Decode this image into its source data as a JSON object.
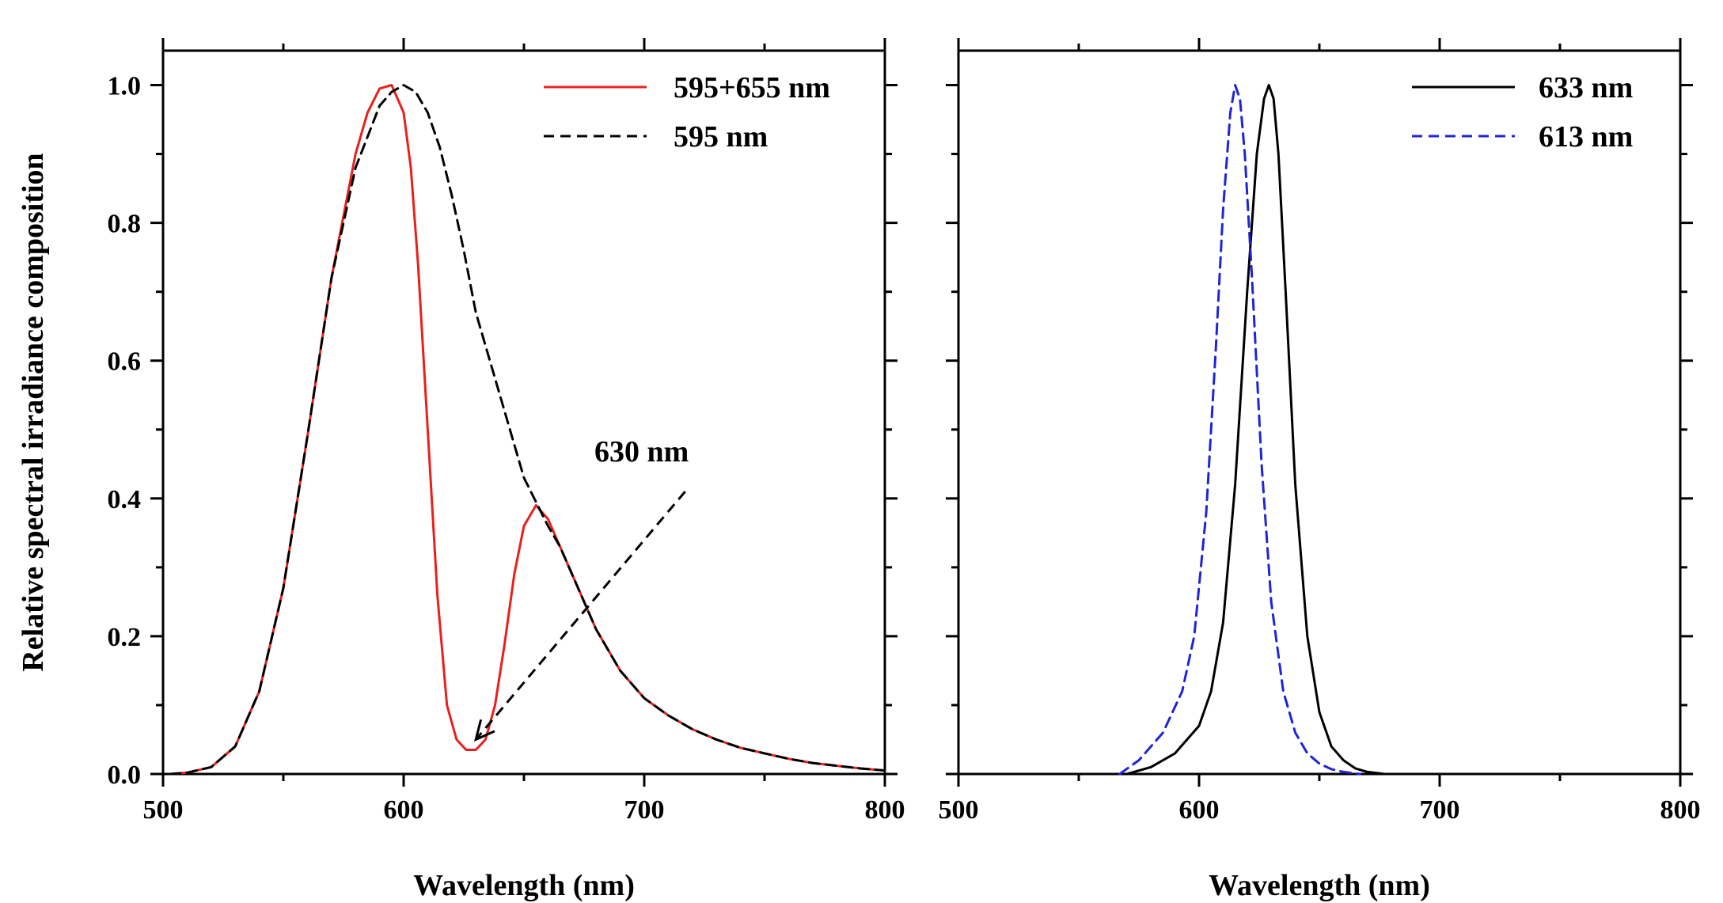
{
  "chart_data": [
    {
      "type": "line",
      "panel": "left",
      "xlabel": "Wavelength (nm)",
      "ylabel": "Relative spectral irradiance composition",
      "xlim": [
        500,
        800
      ],
      "ylim": [
        0,
        1.05
      ],
      "xticks": [
        500,
        600,
        700,
        800
      ],
      "yticks": [
        0.0,
        0.2,
        0.4,
        0.6,
        0.8,
        1.0
      ],
      "xtick_labels": [
        "500",
        "600",
        "700",
        "800"
      ],
      "ytick_labels": [
        "0.0",
        "0.2",
        "0.4",
        "0.6",
        "0.8",
        "1.0"
      ],
      "legend_position": "top-right",
      "series": [
        {
          "name": "595+655 nm",
          "color": "#e8201c",
          "style": "solid",
          "x": [
            503,
            510,
            520,
            530,
            540,
            550,
            560,
            570,
            580,
            585,
            590,
            595,
            600,
            603,
            606,
            610,
            614,
            618,
            622,
            626,
            630,
            634,
            638,
            642,
            646,
            650,
            655,
            660,
            665,
            670,
            675,
            680,
            690,
            700,
            710,
            720,
            730,
            740,
            750,
            760,
            770,
            780,
            790,
            800
          ],
          "y": [
            0.0,
            0.002,
            0.01,
            0.04,
            0.12,
            0.27,
            0.49,
            0.72,
            0.9,
            0.96,
            0.995,
            1.0,
            0.96,
            0.88,
            0.74,
            0.5,
            0.26,
            0.1,
            0.05,
            0.035,
            0.035,
            0.05,
            0.1,
            0.19,
            0.29,
            0.36,
            0.39,
            0.37,
            0.33,
            0.29,
            0.25,
            0.21,
            0.15,
            0.11,
            0.085,
            0.065,
            0.05,
            0.038,
            0.03,
            0.022,
            0.016,
            0.012,
            0.008,
            0.005
          ]
        },
        {
          "name": "595 nm",
          "color": "#000000",
          "style": "dashed",
          "x": [
            503,
            510,
            520,
            530,
            540,
            550,
            560,
            570,
            580,
            590,
            595,
            600,
            605,
            610,
            615,
            620,
            625,
            630,
            640,
            650,
            660,
            665,
            670,
            680,
            690,
            700,
            710,
            720,
            730,
            740,
            750,
            760,
            770,
            780,
            790,
            800
          ],
          "y": [
            0.0,
            0.002,
            0.01,
            0.04,
            0.12,
            0.27,
            0.49,
            0.72,
            0.88,
            0.97,
            0.99,
            1.0,
            0.99,
            0.96,
            0.91,
            0.84,
            0.76,
            0.67,
            0.55,
            0.43,
            0.36,
            0.33,
            0.29,
            0.21,
            0.15,
            0.11,
            0.085,
            0.065,
            0.05,
            0.038,
            0.03,
            0.022,
            0.016,
            0.012,
            0.008,
            0.005
          ]
        }
      ],
      "annotations": [
        {
          "text": "630 nm",
          "from": [
            717,
            0.41
          ],
          "to": [
            630,
            0.05
          ]
        }
      ]
    },
    {
      "type": "line",
      "panel": "right",
      "xlabel": "Wavelength (nm)",
      "ylabel": "",
      "xlim": [
        500,
        800
      ],
      "ylim": [
        0,
        1.05
      ],
      "xticks": [
        500,
        600,
        700,
        800
      ],
      "xtick_labels": [
        "500",
        "600",
        "700",
        "800"
      ],
      "legend_position": "top-right",
      "series": [
        {
          "name": "633 nm",
          "color": "#000000",
          "style": "solid",
          "x": [
            570,
            580,
            590,
            600,
            605,
            610,
            615,
            620,
            624,
            627,
            629,
            631,
            633,
            636,
            640,
            645,
            650,
            655,
            660,
            665,
            670,
            675,
            677
          ],
          "y": [
            0.0,
            0.01,
            0.03,
            0.07,
            0.12,
            0.22,
            0.42,
            0.7,
            0.9,
            0.98,
            1.0,
            0.98,
            0.9,
            0.7,
            0.42,
            0.2,
            0.09,
            0.04,
            0.02,
            0.008,
            0.003,
            0.001,
            0.0
          ]
        },
        {
          "name": "613 nm",
          "color": "#1f24d6",
          "style": "dashed",
          "x": [
            567,
            575,
            585,
            593,
            598,
            603,
            607,
            610,
            613,
            615,
            617,
            619,
            622,
            626,
            630,
            635,
            640,
            645,
            650,
            655,
            660,
            667
          ],
          "y": [
            0.0,
            0.02,
            0.06,
            0.12,
            0.2,
            0.38,
            0.62,
            0.82,
            0.96,
            1.0,
            0.98,
            0.9,
            0.72,
            0.45,
            0.25,
            0.12,
            0.06,
            0.03,
            0.015,
            0.007,
            0.003,
            0.0
          ]
        }
      ]
    }
  ]
}
